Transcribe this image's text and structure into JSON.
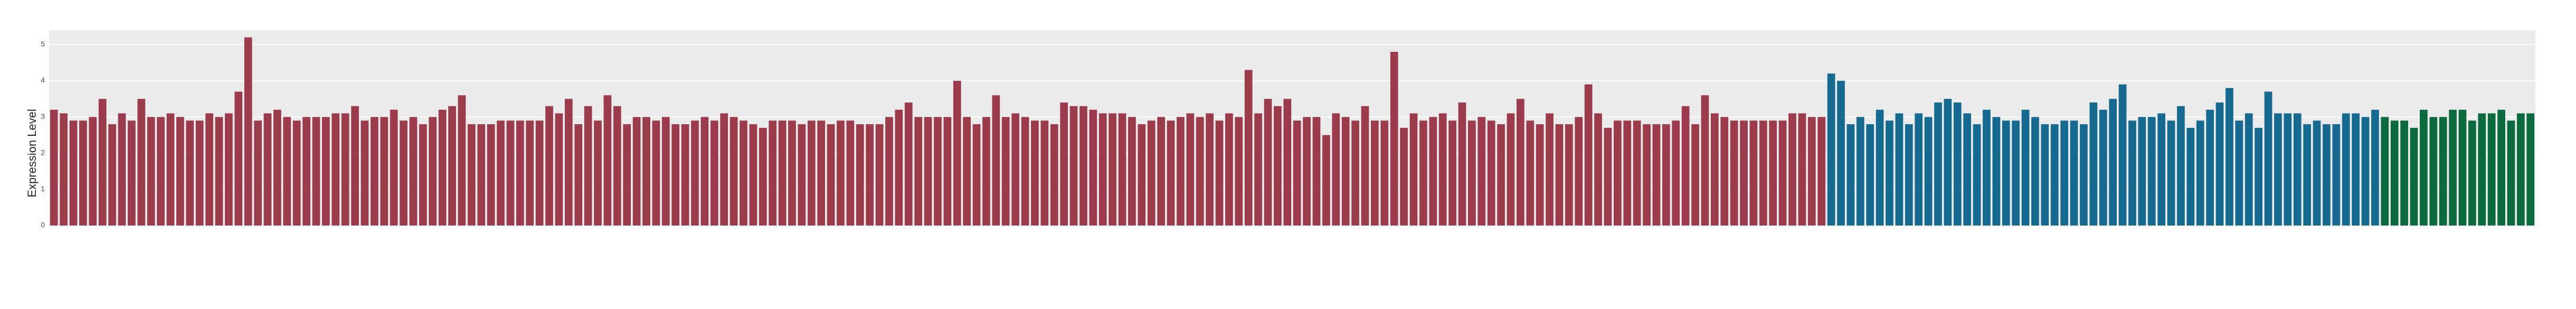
{
  "chart_data": {
    "type": "bar",
    "y_label": "Expression Level",
    "ylim": [
      0,
      5.4
    ],
    "yticks": [
      0,
      1,
      2,
      3,
      4,
      5
    ],
    "grid": true,
    "series": [
      {
        "color": "#9b3b4b",
        "values": [
          3.2,
          3.1,
          2.9,
          2.9,
          3.0,
          3.5,
          2.8,
          3.1,
          2.9,
          3.5,
          3.0,
          3.0,
          3.1,
          3.0,
          2.9,
          2.9,
          3.1,
          3.0,
          3.1,
          3.7,
          5.2,
          2.9,
          3.1,
          3.2,
          3.0,
          2.9,
          3.0,
          3.0,
          3.0,
          3.1,
          3.1,
          3.3,
          2.9,
          3.0,
          3.0,
          3.2,
          2.9,
          3.0,
          2.8,
          3.0,
          3.2,
          3.3,
          3.6,
          2.8,
          2.8,
          2.8,
          2.9,
          2.9,
          2.9,
          2.9,
          2.9,
          3.3,
          3.1,
          3.5,
          2.8,
          3.3,
          2.9,
          3.6,
          3.3,
          2.8,
          3.0,
          3.0,
          2.9,
          3.0,
          2.8,
          2.8,
          2.9,
          3.0,
          2.9,
          3.1,
          3.0,
          2.9,
          2.8,
          2.7,
          2.9,
          2.9,
          2.9,
          2.8,
          2.9,
          2.9,
          2.8,
          2.9,
          2.9,
          2.8,
          2.8,
          2.8,
          3.0,
          3.2,
          3.4,
          3.0,
          3.0,
          3.0,
          3.0,
          4.0,
          3.0,
          2.8,
          3.0,
          3.6,
          3.0,
          3.1,
          3.0,
          2.9,
          2.9,
          2.8,
          3.4,
          3.3,
          3.3,
          3.2,
          3.1,
          3.1,
          3.1,
          3.0,
          2.8,
          2.9,
          3.0,
          2.9,
          3.0,
          3.1,
          3.0,
          3.1,
          2.9,
          3.1,
          3.0,
          4.3,
          3.1,
          3.5,
          3.3,
          3.5,
          2.9,
          3.0,
          3.0,
          2.5,
          3.1,
          3.0,
          2.9,
          3.3,
          2.9,
          2.9,
          4.8,
          2.7,
          3.1,
          2.9,
          3.0,
          3.1,
          2.9,
          3.4,
          2.9,
          3.0,
          2.9,
          2.8,
          3.1,
          3.5,
          2.9,
          2.8,
          3.1,
          2.8,
          2.8,
          3.0,
          3.9,
          3.1,
          2.7,
          2.9,
          2.9,
          2.9,
          2.8,
          2.8,
          2.8,
          2.9,
          3.3,
          2.8,
          3.6,
          3.1,
          3.0,
          2.9,
          2.9,
          2.9,
          2.9,
          2.9,
          2.9,
          3.1,
          3.1,
          3.0,
          3.0
        ]
      },
      {
        "color": "#176a8f",
        "values": [
          4.2,
          4.0,
          2.8,
          3.0,
          2.8,
          3.2,
          2.9,
          3.1,
          2.8,
          3.1,
          3.0,
          3.4,
          3.5,
          3.4,
          3.1,
          2.8,
          3.2,
          3.0,
          2.9,
          2.9,
          3.2,
          3.0,
          2.8,
          2.8,
          2.9,
          2.9,
          2.8,
          3.4,
          3.2,
          3.5,
          3.9,
          2.9,
          3.0,
          3.0,
          3.1,
          2.9,
          3.3,
          2.7,
          2.9,
          3.2,
          3.4,
          3.8,
          2.9,
          3.1,
          2.7,
          3.7,
          3.1,
          3.1,
          3.1,
          2.8,
          2.9,
          2.8,
          2.8,
          3.1,
          3.1,
          3.0,
          3.2
        ]
      },
      {
        "color": "#0b6b3e",
        "values": [
          3.0,
          2.9,
          2.9,
          2.7,
          3.2,
          3.0,
          3.0,
          3.2,
          3.2,
          2.9,
          3.1,
          3.1,
          3.2,
          2.9,
          3.1,
          3.1
        ]
      }
    ]
  }
}
